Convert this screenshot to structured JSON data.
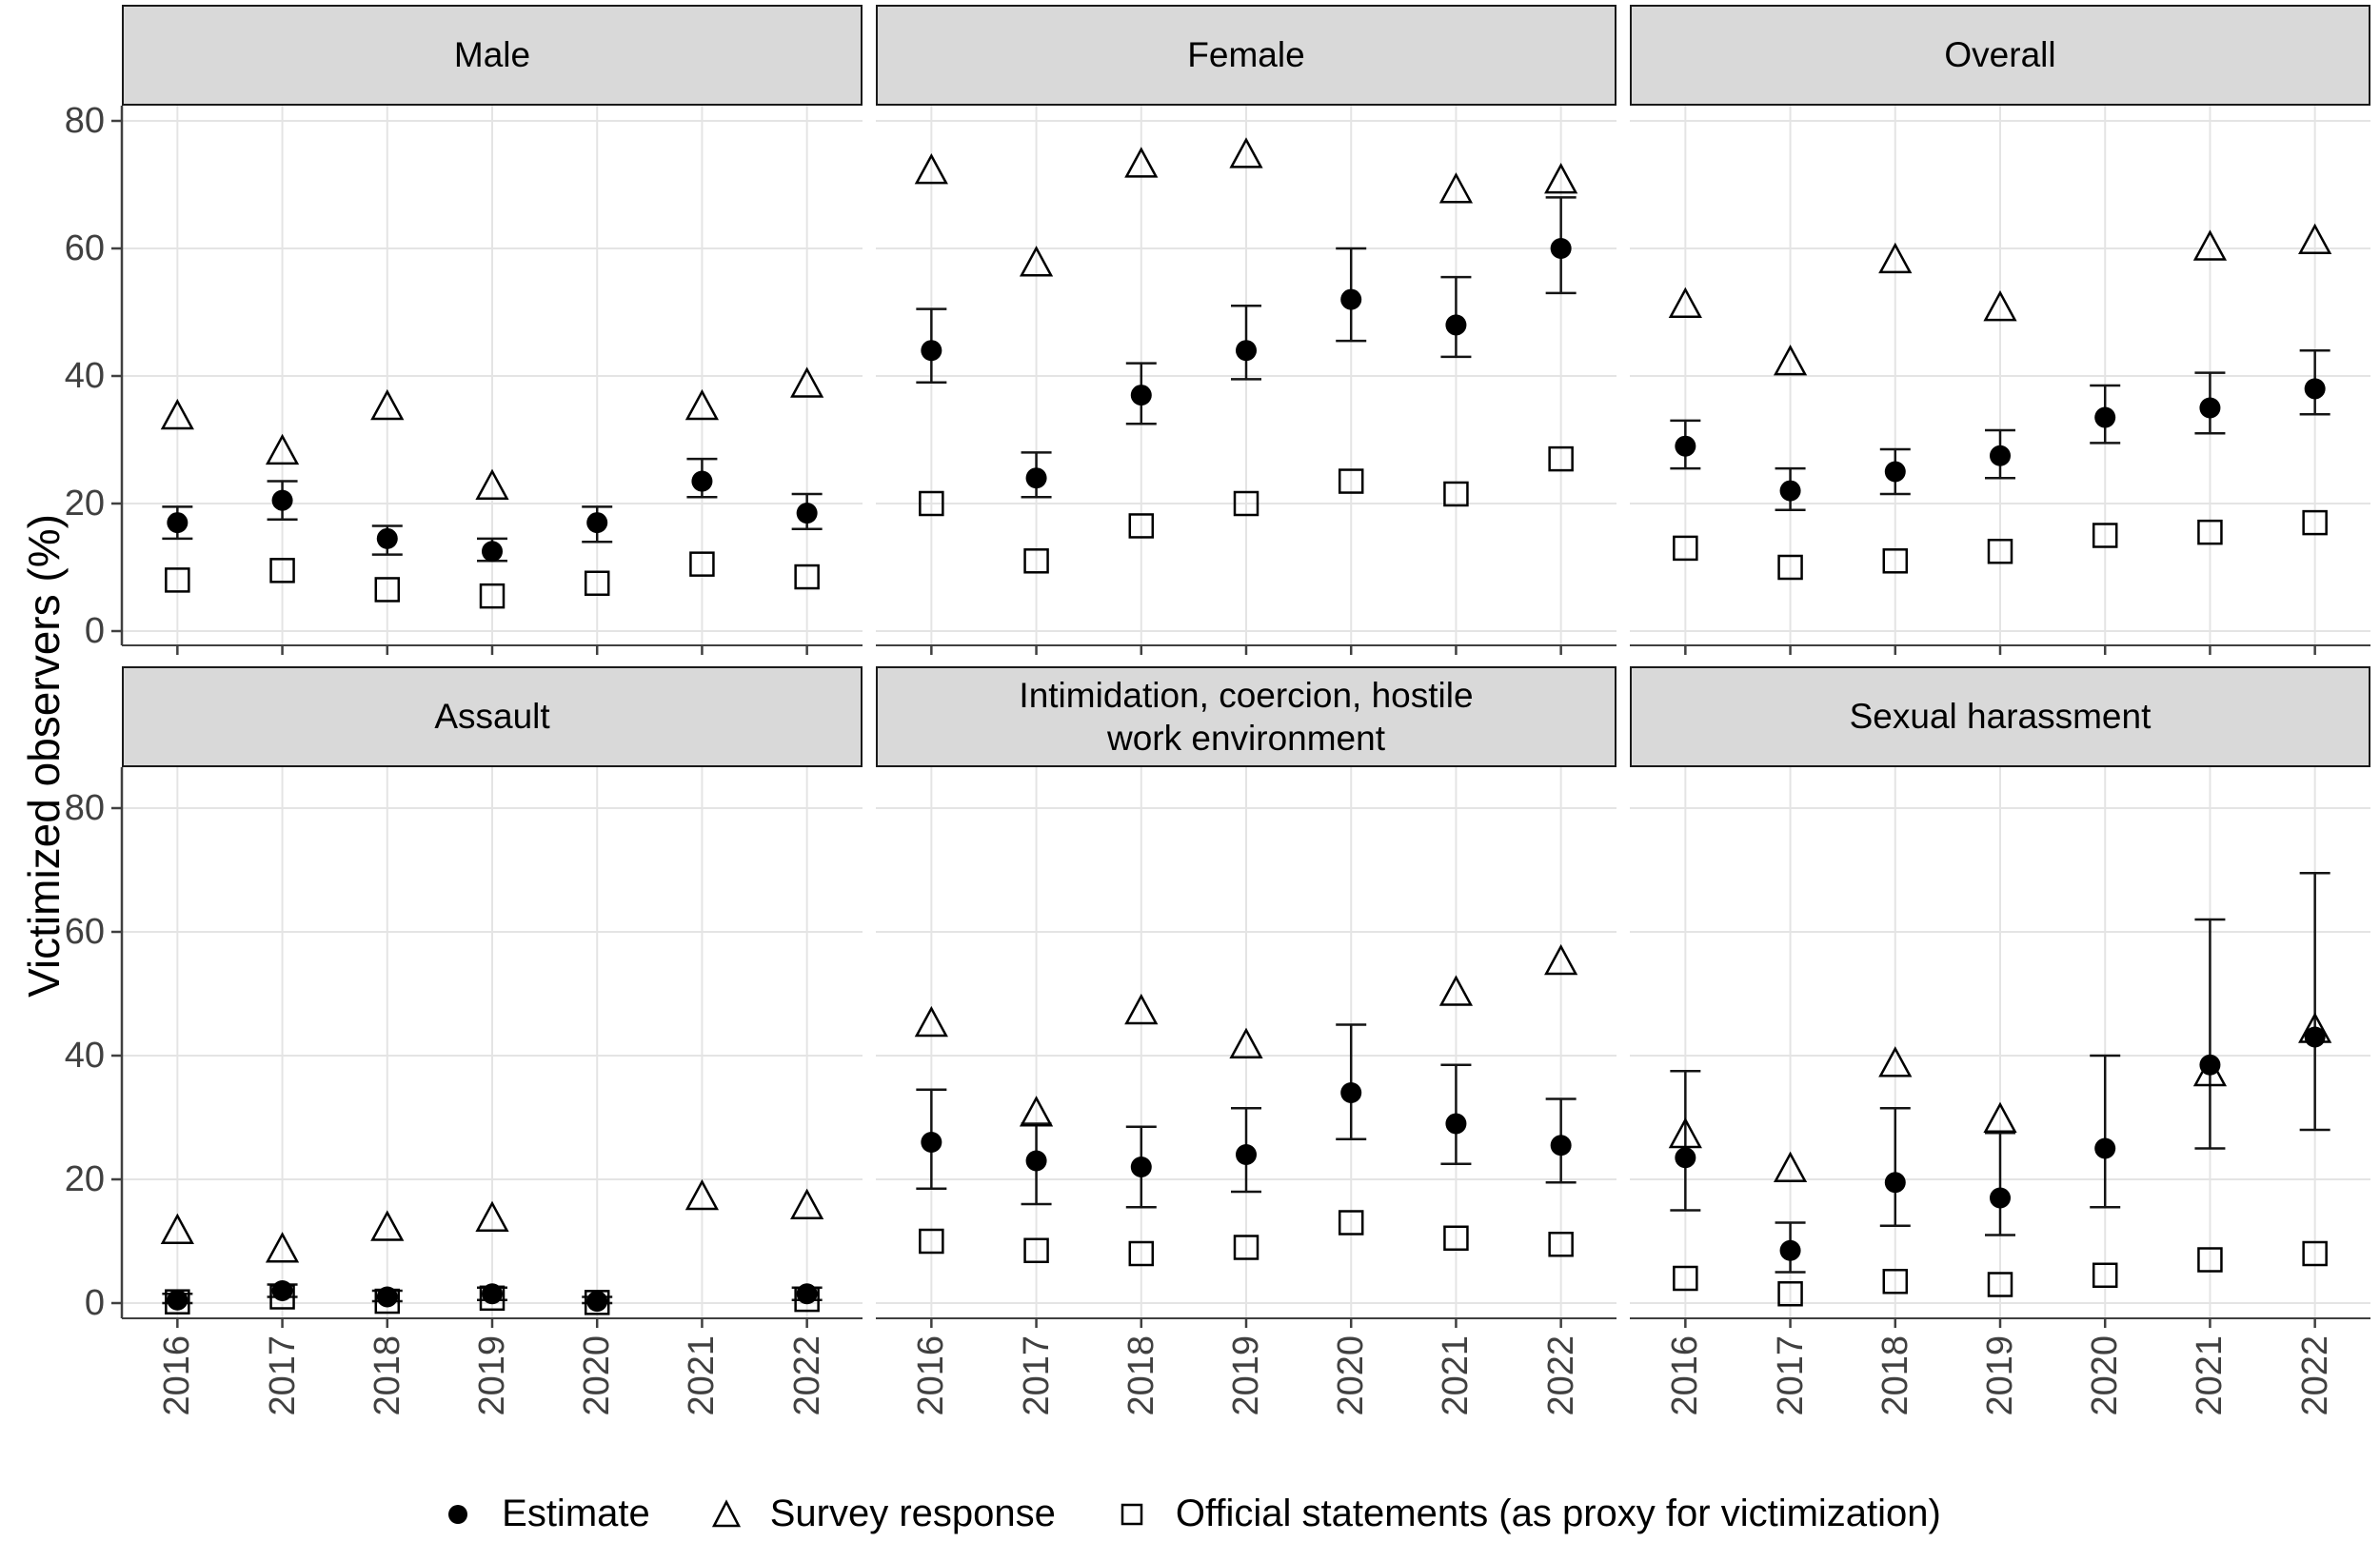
{
  "y_axis": {
    "label": "Victimized observers (%)",
    "ticks": [
      "80",
      "60",
      "40",
      "20",
      "0"
    ],
    "tick_values": [
      80,
      60,
      40,
      20,
      0
    ]
  },
  "x_axis": {
    "years": [
      "2016",
      "2017",
      "2018",
      "2019",
      "2020",
      "2021",
      "2022"
    ]
  },
  "legend": {
    "items": [
      {
        "symbol": "filled-circle",
        "label": "Estimate"
      },
      {
        "symbol": "open-triangle",
        "label": "Survey response"
      },
      {
        "symbol": "open-square",
        "label": "Official statements (as proxy for victimization)"
      }
    ]
  },
  "colors": {
    "marker": "#000000",
    "errorbar": "#141414",
    "gridline": "#e4e4e4",
    "axis_line": "#404040",
    "axis_text": "#404040",
    "strip_bg": "#d9d9d9",
    "strip_border": "#1a1a1a"
  },
  "chart_data": {
    "type": "scatter",
    "title": "",
    "xlabel": "",
    "ylabel": "Victimized observers (%)",
    "ylim": [
      0,
      80
    ],
    "grid": true,
    "legend_position": "bottom",
    "categories": [
      "2016",
      "2017",
      "2018",
      "2019",
      "2020",
      "2021",
      "2022"
    ],
    "series_names": [
      "Estimate",
      "Survey response",
      "Official statements (as proxy for victimization)"
    ],
    "facets": [
      {
        "label": "Male",
        "estimate": [
          17,
          20.5,
          14.5,
          12.5,
          17,
          23.5,
          18.5
        ],
        "ci_low": [
          14.5,
          17.5,
          12,
          11,
          14,
          21,
          16
        ],
        "ci_high": [
          19.5,
          23.5,
          16.5,
          14.5,
          19.5,
          27,
          21.5
        ],
        "survey_response": [
          33.5,
          28,
          35,
          22.5,
          null,
          35,
          38.5
        ],
        "official_statements": [
          8,
          9.5,
          6.5,
          5.5,
          7.5,
          10.5,
          8.5
        ]
      },
      {
        "label": "Female",
        "estimate": [
          44,
          24,
          37,
          44,
          52,
          48,
          60
        ],
        "ci_low": [
          39,
          21,
          32.5,
          39.5,
          45.5,
          43,
          53
        ],
        "ci_high": [
          50.5,
          28,
          42,
          51,
          60,
          55.5,
          68
        ],
        "survey_response": [
          72,
          57.5,
          73,
          74.5,
          null,
          69,
          70.5
        ],
        "official_statements": [
          20,
          11,
          16.5,
          20,
          23.5,
          21.5,
          27
        ]
      },
      {
        "label": "Overall",
        "estimate": [
          29,
          22,
          25,
          27.5,
          33.5,
          35,
          38
        ],
        "ci_low": [
          25.5,
          19,
          21.5,
          24,
          29.5,
          31,
          34
        ],
        "ci_high": [
          33,
          25.5,
          28.5,
          31.5,
          38.5,
          40.5,
          44
        ],
        "survey_response": [
          51,
          42,
          58,
          50.5,
          null,
          60,
          61
        ],
        "official_statements": [
          13,
          10,
          11,
          12.5,
          15,
          15.5,
          17
        ]
      },
      {
        "label": "Assault",
        "estimate": [
          0.5,
          2,
          1,
          1.5,
          0.3,
          null,
          1.5
        ],
        "ci_low": [
          0,
          1,
          0.3,
          0.5,
          0,
          null,
          0.5
        ],
        "ci_high": [
          1.5,
          3,
          2,
          2.5,
          1,
          null,
          2.5
        ],
        "survey_response": [
          11.5,
          8.5,
          12,
          13.5,
          null,
          17,
          15.5
        ],
        "official_statements": [
          0.2,
          1,
          0.3,
          0.8,
          0.1,
          null,
          0.6
        ]
      },
      {
        "label": "Intimidation, coercion, hostile\nwork environment",
        "estimate": [
          26,
          23,
          22,
          24,
          34,
          29,
          25.5
        ],
        "ci_low": [
          18.5,
          16,
          15.5,
          18,
          26.5,
          22.5,
          19.5
        ],
        "ci_high": [
          34.5,
          29,
          28.5,
          31.5,
          45,
          38.5,
          33
        ],
        "survey_response": [
          45,
          30.5,
          47,
          41.5,
          null,
          50,
          55
        ],
        "official_statements": [
          10,
          8.5,
          8,
          9,
          13,
          10.5,
          9.5
        ]
      },
      {
        "label": "Sexual harassment",
        "estimate": [
          23.5,
          8.5,
          19.5,
          17,
          25,
          38.5,
          43
        ],
        "ci_low": [
          15,
          5,
          12.5,
          11,
          15.5,
          25,
          28
        ],
        "ci_high": [
          37.5,
          13,
          31.5,
          27.5,
          40,
          62,
          69.5
        ],
        "survey_response": [
          27,
          21.5,
          38.5,
          29.5,
          null,
          37,
          44
        ],
        "official_statements": [
          4,
          1.5,
          3.5,
          3,
          4.5,
          7,
          8
        ]
      }
    ]
  }
}
